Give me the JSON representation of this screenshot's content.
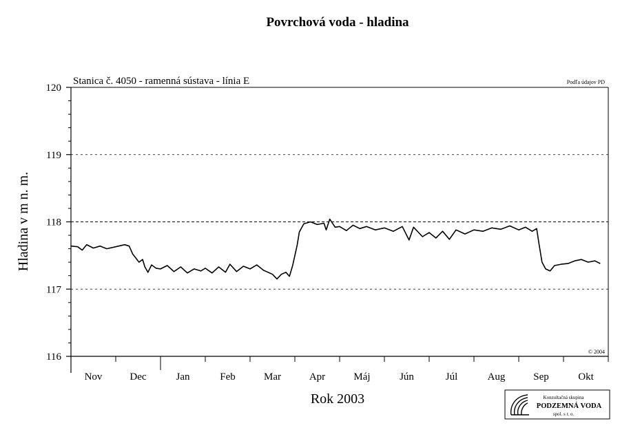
{
  "chart_data": {
    "type": "line",
    "title": "Povrchová voda - hladina",
    "subtitle": "Stanica č. 4050 - ramenná sústava - línia E",
    "source_note": "Podľa údajov PD",
    "copyright": "© 2004",
    "xlabel": "Rok 2003",
    "ylabel": "Hladina v m n. m.",
    "ylim": [
      116,
      120
    ],
    "yticks": [
      "116",
      "117",
      "118",
      "119",
      "120"
    ],
    "dashed_gridlines": [
      117,
      118,
      119
    ],
    "months": [
      "Nov",
      "Dec",
      "Jan",
      "Feb",
      "Mar",
      "Apr",
      "Máj",
      "Jún",
      "Júl",
      "Aug",
      "Sep",
      "Okt"
    ],
    "series": [
      {
        "values": [
          [
            0.0,
            117.64
          ],
          [
            0.15,
            117.63
          ],
          [
            0.25,
            117.58
          ],
          [
            0.35,
            117.66
          ],
          [
            0.5,
            117.61
          ],
          [
            0.65,
            117.64
          ],
          [
            0.8,
            117.6
          ],
          [
            1.0,
            117.63
          ],
          [
            1.2,
            117.66
          ],
          [
            1.3,
            117.64
          ],
          [
            1.38,
            117.52
          ],
          [
            1.45,
            117.46
          ],
          [
            1.52,
            117.4
          ],
          [
            1.6,
            117.44
          ],
          [
            1.65,
            117.33
          ],
          [
            1.72,
            117.25
          ],
          [
            1.8,
            117.36
          ],
          [
            1.9,
            117.31
          ],
          [
            2.0,
            117.3
          ],
          [
            2.15,
            117.35
          ],
          [
            2.3,
            117.26
          ],
          [
            2.45,
            117.33
          ],
          [
            2.6,
            117.24
          ],
          [
            2.75,
            117.3
          ],
          [
            2.9,
            117.27
          ],
          [
            3.0,
            117.31
          ],
          [
            3.15,
            117.24
          ],
          [
            3.3,
            117.33
          ],
          [
            3.45,
            117.25
          ],
          [
            3.55,
            117.37
          ],
          [
            3.7,
            117.26
          ],
          [
            3.85,
            117.34
          ],
          [
            4.0,
            117.3
          ],
          [
            4.15,
            117.36
          ],
          [
            4.3,
            117.28
          ],
          [
            4.5,
            117.22
          ],
          [
            4.6,
            117.15
          ],
          [
            4.7,
            117.22
          ],
          [
            4.8,
            117.25
          ],
          [
            4.88,
            117.19
          ],
          [
            4.95,
            117.35
          ],
          [
            5.05,
            117.65
          ],
          [
            5.1,
            117.85
          ],
          [
            5.2,
            117.97
          ],
          [
            5.35,
            118.0
          ],
          [
            5.5,
            117.96
          ],
          [
            5.65,
            117.98
          ],
          [
            5.7,
            117.88
          ],
          [
            5.78,
            118.04
          ],
          [
            5.9,
            117.92
          ],
          [
            6.0,
            117.93
          ],
          [
            6.15,
            117.87
          ],
          [
            6.3,
            117.95
          ],
          [
            6.45,
            117.9
          ],
          [
            6.6,
            117.93
          ],
          [
            6.8,
            117.88
          ],
          [
            7.0,
            117.91
          ],
          [
            7.2,
            117.86
          ],
          [
            7.4,
            117.93
          ],
          [
            7.55,
            117.73
          ],
          [
            7.65,
            117.92
          ],
          [
            7.85,
            117.78
          ],
          [
            8.0,
            117.84
          ],
          [
            8.15,
            117.76
          ],
          [
            8.3,
            117.86
          ],
          [
            8.45,
            117.74
          ],
          [
            8.6,
            117.88
          ],
          [
            8.8,
            117.82
          ],
          [
            9.0,
            117.88
          ],
          [
            9.2,
            117.86
          ],
          [
            9.4,
            117.91
          ],
          [
            9.6,
            117.89
          ],
          [
            9.8,
            117.94
          ],
          [
            10.0,
            117.88
          ],
          [
            10.15,
            117.92
          ],
          [
            10.3,
            117.86
          ],
          [
            10.4,
            117.9
          ],
          [
            10.45,
            117.68
          ],
          [
            10.52,
            117.4
          ],
          [
            10.6,
            117.3
          ],
          [
            10.7,
            117.27
          ],
          [
            10.8,
            117.35
          ],
          [
            10.95,
            117.37
          ],
          [
            11.1,
            117.38
          ],
          [
            11.25,
            117.42
          ],
          [
            11.4,
            117.44
          ],
          [
            11.55,
            117.4
          ],
          [
            11.7,
            117.42
          ],
          [
            11.82,
            117.38
          ]
        ]
      }
    ],
    "legend": "none"
  },
  "logo": {
    "line1": "Konzultačná skupina",
    "line2": "PODZEMNÁ VODA",
    "line3": "spol. s r. o."
  }
}
